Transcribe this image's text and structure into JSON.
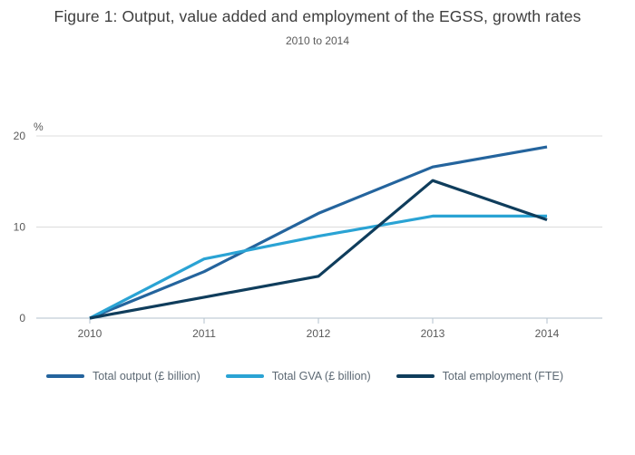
{
  "figure": {
    "title": "Figure 1: Output, value added and employment of the EGSS, growth rates",
    "subtitle": "2010 to 2014"
  },
  "chart_data": {
    "type": "line",
    "x": [
      2010,
      2011,
      2012,
      2013,
      2014
    ],
    "x_tick_labels": [
      "2010",
      "2011",
      "2012",
      "2013",
      "2014"
    ],
    "ylabel": "%",
    "yticks": [
      0,
      10,
      20
    ],
    "ylim": [
      0,
      20
    ],
    "grid": true,
    "legend_position": "bottom",
    "series": [
      {
        "name": "Total output (£ billion)",
        "color": "#24649d",
        "values": [
          0,
          5.1,
          11.5,
          16.6,
          18.8
        ]
      },
      {
        "name": "Total GVA (£ billion)",
        "color": "#2aa3d4",
        "values": [
          0,
          6.5,
          9.0,
          11.2,
          11.2
        ]
      },
      {
        "name": "Total employment (FTE)",
        "color": "#0f3d5c",
        "values": [
          0,
          2.3,
          4.6,
          15.1,
          10.8
        ]
      }
    ]
  },
  "style_colors": {
    "gridline": "#dcdcdc",
    "axis_line": "#b3c2ce",
    "tick_label": "#595959",
    "title": "#3e3e3e",
    "subtitle": "#5a5a5a",
    "legend_text": "#5c6873"
  }
}
